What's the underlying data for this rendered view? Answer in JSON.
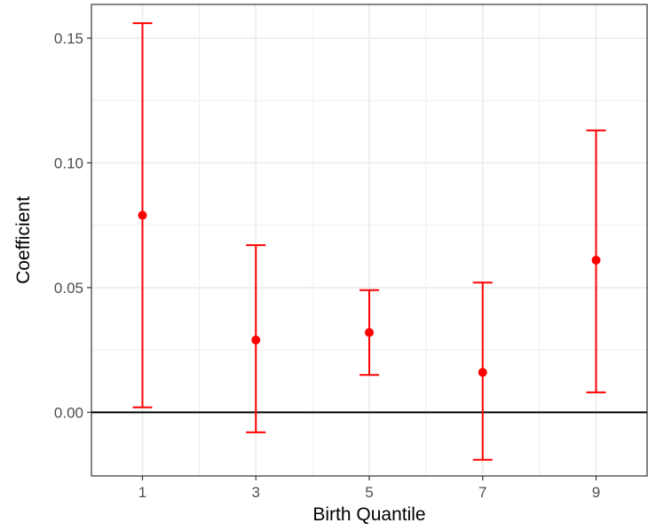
{
  "chart_data": {
    "type": "scatter",
    "subtype": "point-with-errorbars",
    "title": "",
    "xlabel": "Birth Quantile",
    "ylabel": "Coefficient",
    "x": [
      1,
      3,
      5,
      7,
      9
    ],
    "y": [
      0.079,
      0.029,
      0.032,
      0.016,
      0.061
    ],
    "ymin": [
      0.002,
      -0.008,
      0.015,
      -0.019,
      0.008
    ],
    "ymax": [
      0.156,
      0.067,
      0.049,
      0.052,
      0.113
    ],
    "xticks": [
      1,
      3,
      5,
      7,
      9
    ],
    "xtick_labels": [
      "1",
      "3",
      "5",
      "7",
      "9"
    ],
    "yticks": [
      0.0,
      0.05,
      0.1,
      0.15
    ],
    "ytick_labels": [
      "0.00",
      "0.05",
      "0.10",
      "0.15"
    ],
    "xlim": [
      0.1,
      9.9
    ],
    "ylim": [
      -0.0255,
      0.1635
    ],
    "reference_line_y": 0,
    "grid": true,
    "legend": "none",
    "colors": {
      "series": "#ff0000",
      "reference_line": "#000000",
      "grid": "#ebebeb",
      "panel_border": "#333333",
      "tick_text": "#4d4d4d"
    }
  }
}
